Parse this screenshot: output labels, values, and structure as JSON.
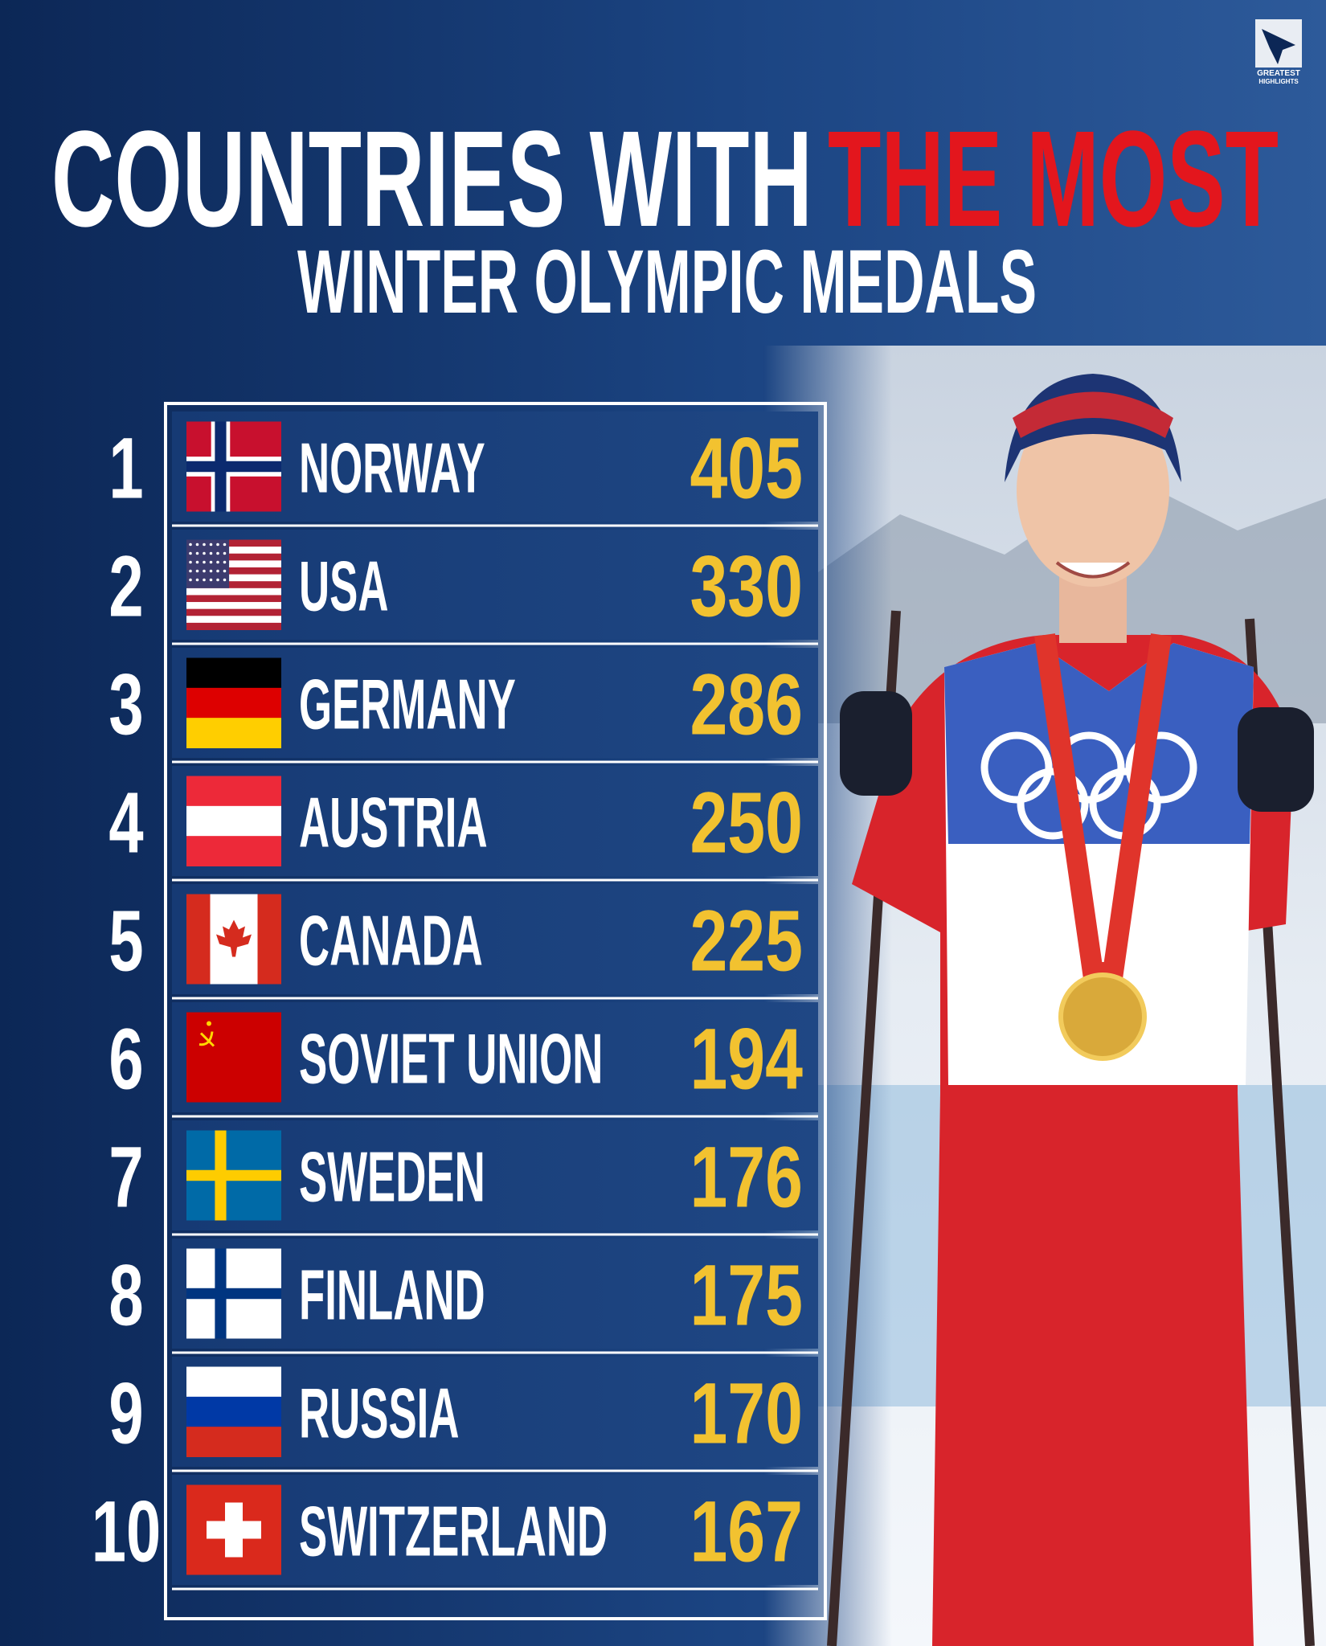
{
  "logo": {
    "line1": "GREATEST",
    "line2": "HIGHLIGHTS"
  },
  "header": {
    "title_white": "COUNTRIES WITH",
    "title_red": "THE MOST",
    "subtitle": "WINTER OLYMPIC MEDALS"
  },
  "rows": [
    {
      "rank": 1,
      "country": "NORWAY",
      "medals": 405
    },
    {
      "rank": 2,
      "country": "USA",
      "medals": 330
    },
    {
      "rank": 3,
      "country": "GERMANY",
      "medals": 286
    },
    {
      "rank": 4,
      "country": "AUSTRIA",
      "medals": 250
    },
    {
      "rank": 5,
      "country": "CANADA",
      "medals": 225
    },
    {
      "rank": 6,
      "country": "SOVIET UNION",
      "medals": 194
    },
    {
      "rank": 7,
      "country": "SWEDEN",
      "medals": 176
    },
    {
      "rank": 8,
      "country": "FINLAND",
      "medals": 175
    },
    {
      "rank": 9,
      "country": "RUSSIA",
      "medals": 170
    },
    {
      "rank": 10,
      "country": "SWITZERLAND",
      "medals": 167
    }
  ]
}
